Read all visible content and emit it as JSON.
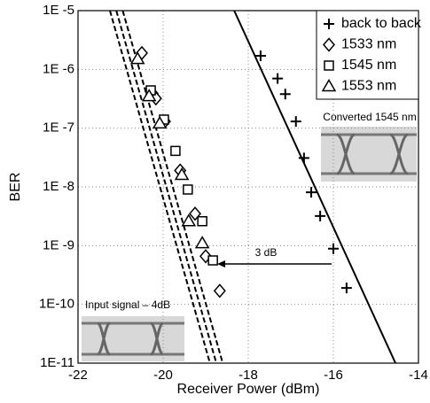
{
  "chart_data": {
    "type": "scatter",
    "x_label": "Receiver Power (dBm)",
    "y_label": "BER",
    "xlim": [
      -22,
      -14
    ],
    "xticks": [
      -22,
      -20,
      -18,
      -16,
      -14
    ],
    "ylim": [
      1e-11,
      1e-05
    ],
    "y_log": true,
    "yticks": [
      {
        "value": 1e-11,
        "label": "1E-11"
      },
      {
        "value": 1e-10,
        "label": "1E-10"
      },
      {
        "value": 1e-09,
        "label": "1E -9"
      },
      {
        "value": 1e-08,
        "label": "1E -8"
      },
      {
        "value": 1e-07,
        "label": "1E -7"
      },
      {
        "value": 1e-06,
        "label": "1E -6"
      },
      {
        "value": 1e-05,
        "label": "1E -5"
      }
    ],
    "grid": true,
    "legend": "upper right",
    "series": [
      {
        "name": "back to back",
        "marker": "plus",
        "color": "#000",
        "x": [
          -17.71,
          -17.31,
          -17.13,
          -16.88,
          -16.69,
          -16.52,
          -16.31,
          -16.0,
          -15.69
        ],
        "values": [
          1.7e-06,
          7e-07,
          3.8e-07,
          1.3e-07,
          3.1e-08,
          8.1e-09,
          3.2e-09,
          8.9e-10,
          1.9e-10
        ]
      },
      {
        "name": "1533 nm",
        "marker": "diamond",
        "color": "#000",
        "x": [
          -20.5,
          -20.25,
          -20.17,
          -19.96,
          -19.6,
          -19.25,
          -19.0,
          -18.67
        ],
        "values": [
          1.9e-06,
          3.9e-07,
          3.2e-07,
          1.3e-07,
          1.9e-08,
          3.5e-09,
          6.6e-10,
          1.7e-10
        ]
      },
      {
        "name": "1545 nm",
        "marker": "square",
        "color": "#000",
        "x": [
          -20.29,
          -19.98,
          -19.71,
          -19.42,
          -19.08,
          -18.83
        ],
        "values": [
          4.4e-07,
          1.4e-07,
          4.1e-08,
          9e-09,
          2.6e-09,
          5.6e-10
        ]
      },
      {
        "name": "1553 nm",
        "marker": "triangle",
        "color": "#000",
        "x": [
          -20.6,
          -20.33,
          -20.08,
          -19.56,
          -19.4,
          -19.08
        ],
        "values": [
          1.5e-06,
          3.5e-07,
          1.2e-07,
          1.6e-08,
          2.6e-09,
          1.1e-09
        ]
      }
    ],
    "fit_lines": [
      {
        "dashed": false,
        "x": [
          -18.33,
          -14.54
        ],
        "values": [
          1e-05,
          1e-11
        ]
      },
      {
        "dashed": true,
        "x": [
          -21.25,
          -18.9
        ],
        "values": [
          1e-05,
          1e-11
        ]
      },
      {
        "dashed": true,
        "x": [
          -21.1,
          -18.75
        ],
        "values": [
          1e-05,
          1e-11
        ]
      },
      {
        "dashed": true,
        "x": [
          -20.95,
          -18.6
        ],
        "values": [
          1e-05,
          1e-11
        ]
      }
    ],
    "annotations": [
      "3 dB",
      "Converted 1545 nm",
      "Input signal – 4dB"
    ]
  }
}
